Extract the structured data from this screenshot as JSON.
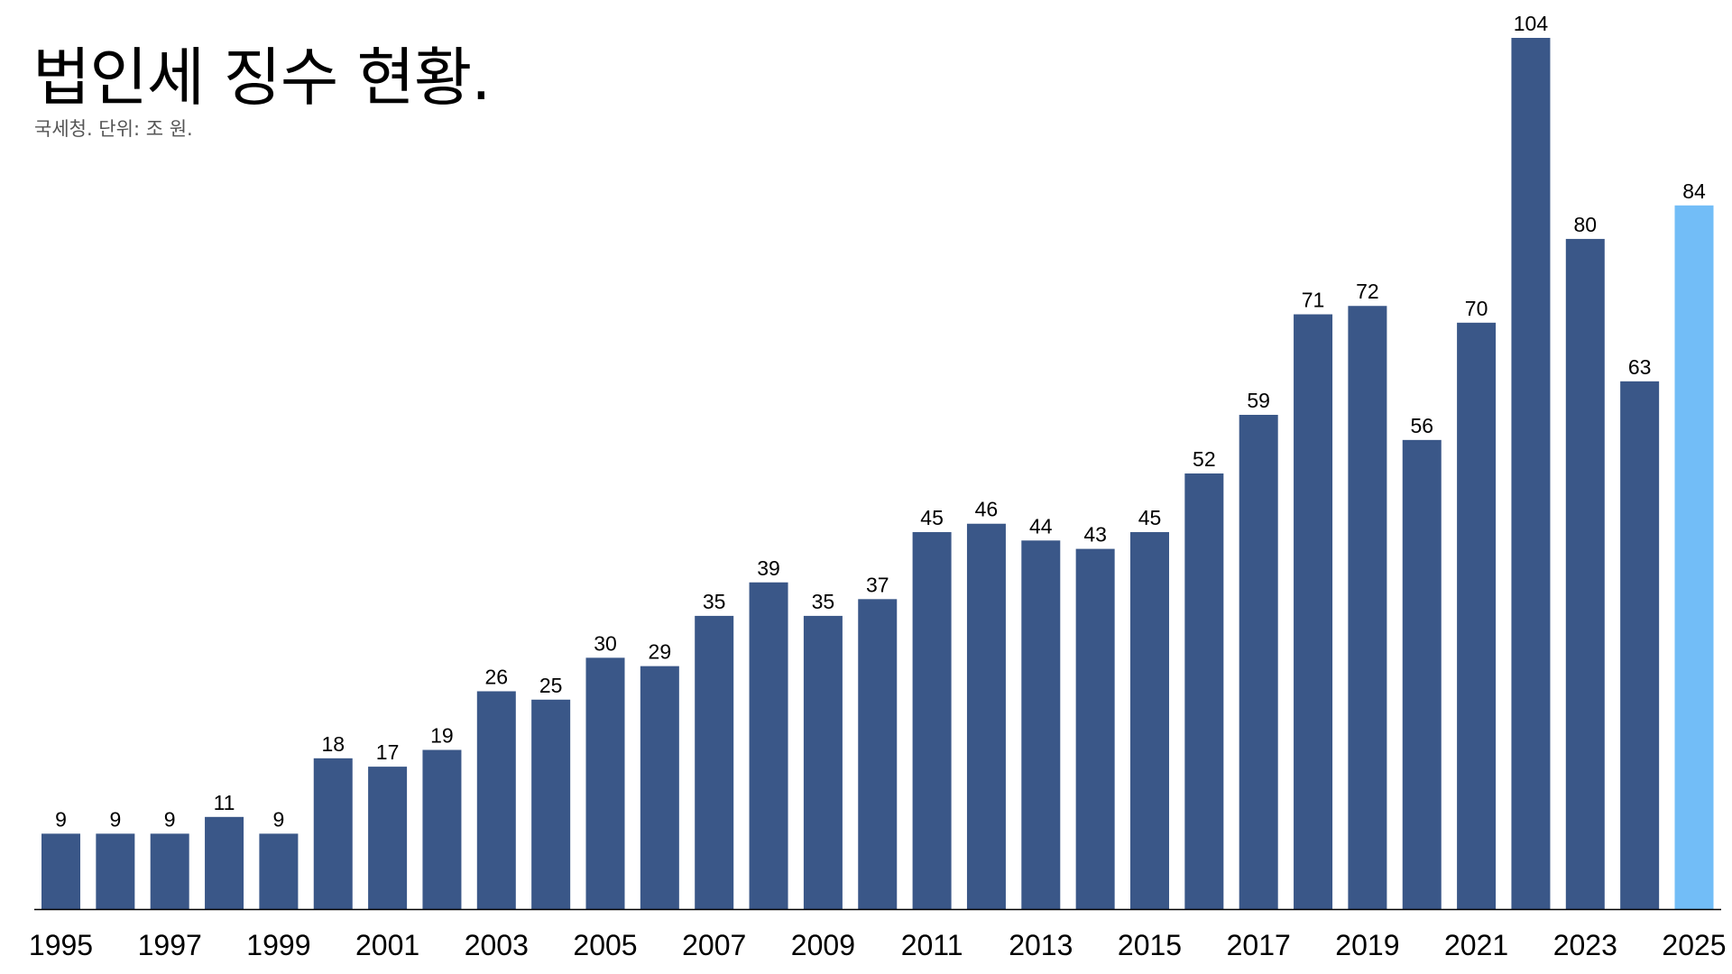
{
  "chart_data": {
    "type": "bar",
    "title": "법인세 징수 현황.",
    "subtitle": "국세청. 단위: 조 원.",
    "xlabel": "",
    "ylabel": "",
    "categories": [
      "1995",
      "1996",
      "1997",
      "1998",
      "1999",
      "2000",
      "2001",
      "2002",
      "2003",
      "2004",
      "2005",
      "2006",
      "2007",
      "2008",
      "2009",
      "2010",
      "2011",
      "2012",
      "2013",
      "2014",
      "2015",
      "2016",
      "2017",
      "2018",
      "2019",
      "2020",
      "2021",
      "2022",
      "2023",
      "2024",
      "2025"
    ],
    "tick_labels": [
      "1995",
      "1997",
      "1999",
      "2001",
      "2003",
      "2005",
      "2007",
      "2009",
      "2011",
      "2013",
      "2015",
      "2017",
      "2019",
      "2021",
      "2023",
      "2025"
    ],
    "values": [
      9,
      9,
      9,
      11,
      9,
      18,
      17,
      19,
      26,
      25,
      30,
      29,
      35,
      39,
      35,
      37,
      45,
      46,
      44,
      43,
      45,
      52,
      59,
      71,
      72,
      56,
      70,
      104,
      80,
      63,
      84
    ],
    "value_labels": [
      "9",
      "9",
      "9",
      "11",
      "9",
      "18",
      "17",
      "19",
      "26",
      "25",
      "30",
      "29",
      "35",
      "39",
      "35",
      "37",
      "45",
      "46",
      "44",
      "43",
      "45",
      "52",
      "59",
      "71",
      "72",
      "56",
      "70",
      "104",
      "80",
      "63",
      "84"
    ],
    "highlight_index": 30,
    "ylim": [
      0,
      104
    ],
    "grid": false,
    "legend": "none",
    "colors": {
      "bar": "#3a5788",
      "highlight": "#72bdf7",
      "baseline": "#000000"
    }
  }
}
